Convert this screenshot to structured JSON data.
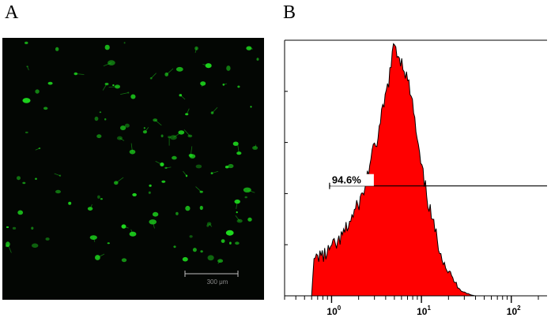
{
  "figure": {
    "panel_a_label": "A",
    "panel_b_label": "B"
  },
  "micrograph": {
    "scale_bar_label": "300 μm",
    "cell_color": "#1ed91e",
    "background_color": "#030603"
  },
  "chart_data": {
    "type": "area",
    "x_scale": "log",
    "xlim": [
      0.3,
      250
    ],
    "x_ticks": [
      {
        "base": "10",
        "exp": "0",
        "value": 1
      },
      {
        "base": "10",
        "exp": "1",
        "value": 10
      },
      {
        "base": "10",
        "exp": "2",
        "value": 100
      }
    ],
    "ylim": [
      0,
      100
    ],
    "fill_color": "#ff0000",
    "outline_color": "#000000",
    "series": [
      {
        "x": [
          0.6,
          0.62,
          0.65,
          0.7,
          0.75,
          0.8,
          0.9,
          1.0,
          1.15,
          1.3,
          1.5,
          1.7,
          2.0,
          2.3,
          2.6,
          3.0,
          3.3,
          3.6,
          4.0,
          4.3,
          4.6,
          5.0,
          5.4,
          5.8,
          6.3,
          6.8,
          7.5,
          8.2,
          9.0,
          10.0,
          11.0,
          12.0,
          13.5,
          15.0,
          17.0,
          19.0,
          22.0,
          25.0,
          28.0,
          32.0,
          36.0,
          40.0
        ],
        "y": [
          0,
          10,
          14,
          15,
          17,
          15,
          17,
          19,
          20,
          23,
          27,
          31,
          36,
          41,
          50,
          58,
          62,
          70,
          78,
          84,
          90,
          99,
          95,
          93,
          90,
          86,
          80,
          72,
          60,
          50,
          43,
          36,
          28,
          22,
          16,
          11,
          7,
          4,
          2,
          1,
          0.3,
          0
        ]
      }
    ],
    "gate": {
      "label": "94.6%",
      "x_start": 0.95,
      "x_end": 250,
      "y": 43
    }
  }
}
